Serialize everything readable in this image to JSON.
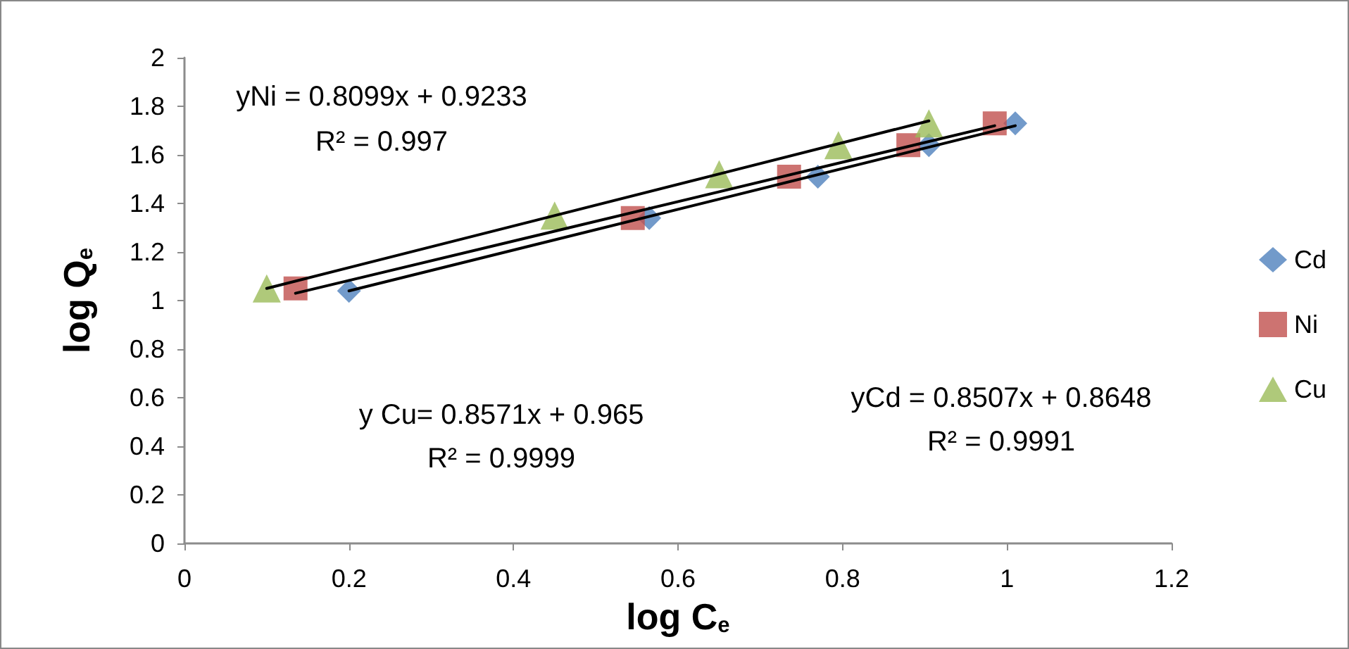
{
  "chart_data": {
    "type": "scatter",
    "xlabel": "log C$_{e}$",
    "ylabel": "log Q$_{e}$",
    "xlim": [
      0,
      1.2
    ],
    "xticks": [
      0,
      0.2,
      0.4,
      0.6,
      0.8,
      1,
      1.2
    ],
    "ylim": [
      0,
      2
    ],
    "yticks": [
      0,
      0.2,
      0.4,
      0.6,
      0.8,
      1,
      1.2,
      1.4,
      1.6,
      1.8,
      2
    ],
    "grid": false,
    "legend": "right",
    "series": [
      {
        "name": "Cd",
        "color": "#4f81bd",
        "marker": "diamond",
        "x": [
          0.2,
          0.565,
          0.77,
          0.905,
          1.01
        ],
        "values": [
          1.04,
          1.34,
          1.51,
          1.64,
          1.73
        ]
      },
      {
        "name": "Ni",
        "color": "#c0504d",
        "marker": "square",
        "x": [
          0.135,
          0.545,
          0.735,
          0.88,
          0.985
        ],
        "values": [
          1.05,
          1.34,
          1.51,
          1.64,
          1.73
        ]
      },
      {
        "name": "Cu",
        "color": "#9bbb59",
        "marker": "triangle",
        "x": [
          0.1,
          0.45,
          0.65,
          0.795,
          0.905
        ],
        "values": [
          1.05,
          1.35,
          1.52,
          1.64,
          1.73
        ]
      },
      {
        "type": "line",
        "color": "#000000",
        "marker": "none",
        "line_style": "solid",
        "x": [
          0.2,
          1.01
        ],
        "values": [
          1.04,
          1.72
        ]
      },
      {
        "type": "line",
        "color": "#000000",
        "marker": "none",
        "line_style": "solid",
        "x": [
          0.135,
          0.985
        ],
        "values": [
          1.03,
          1.72
        ]
      },
      {
        "type": "line",
        "color": "#000000",
        "marker": "none",
        "line_style": "solid",
        "x": [
          0.1,
          0.905
        ],
        "values": [
          1.05,
          1.74
        ]
      }
    ],
    "annotations": [
      "yNi = 0.8099x + 0.9233",
      "R² = 0.997",
      "y Cu= 0.8571x + 0.965",
      "R² = 0.9999",
      "yCd = 0.8507x + 0.8648",
      "R² = 0.9991"
    ]
  }
}
